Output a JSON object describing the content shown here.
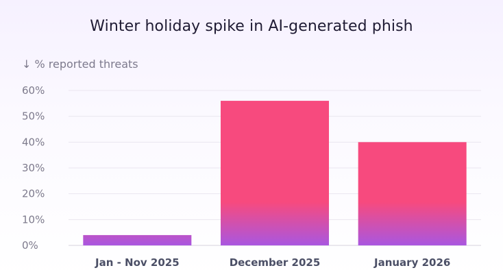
{
  "chart_data": {
    "type": "bar",
    "title": "Winter holiday spike in AI-generated phish",
    "ylabel": "↓ % reported threats",
    "xlabel": "",
    "categories": [
      "Jan - Nov 2025",
      "December 2025",
      "January 2026"
    ],
    "values": [
      4,
      56,
      40
    ],
    "ylim": [
      0,
      60
    ],
    "yticks": [
      "0%",
      "10%",
      "20%",
      "30%",
      "40%",
      "50%",
      "60%"
    ],
    "grid": true,
    "legend": "none",
    "colors": {
      "bar_top": "#f74a7e",
      "bar_bottom": "#a957e0",
      "grid": "#e9e6ef",
      "axis": "#d6d3dd"
    }
  }
}
